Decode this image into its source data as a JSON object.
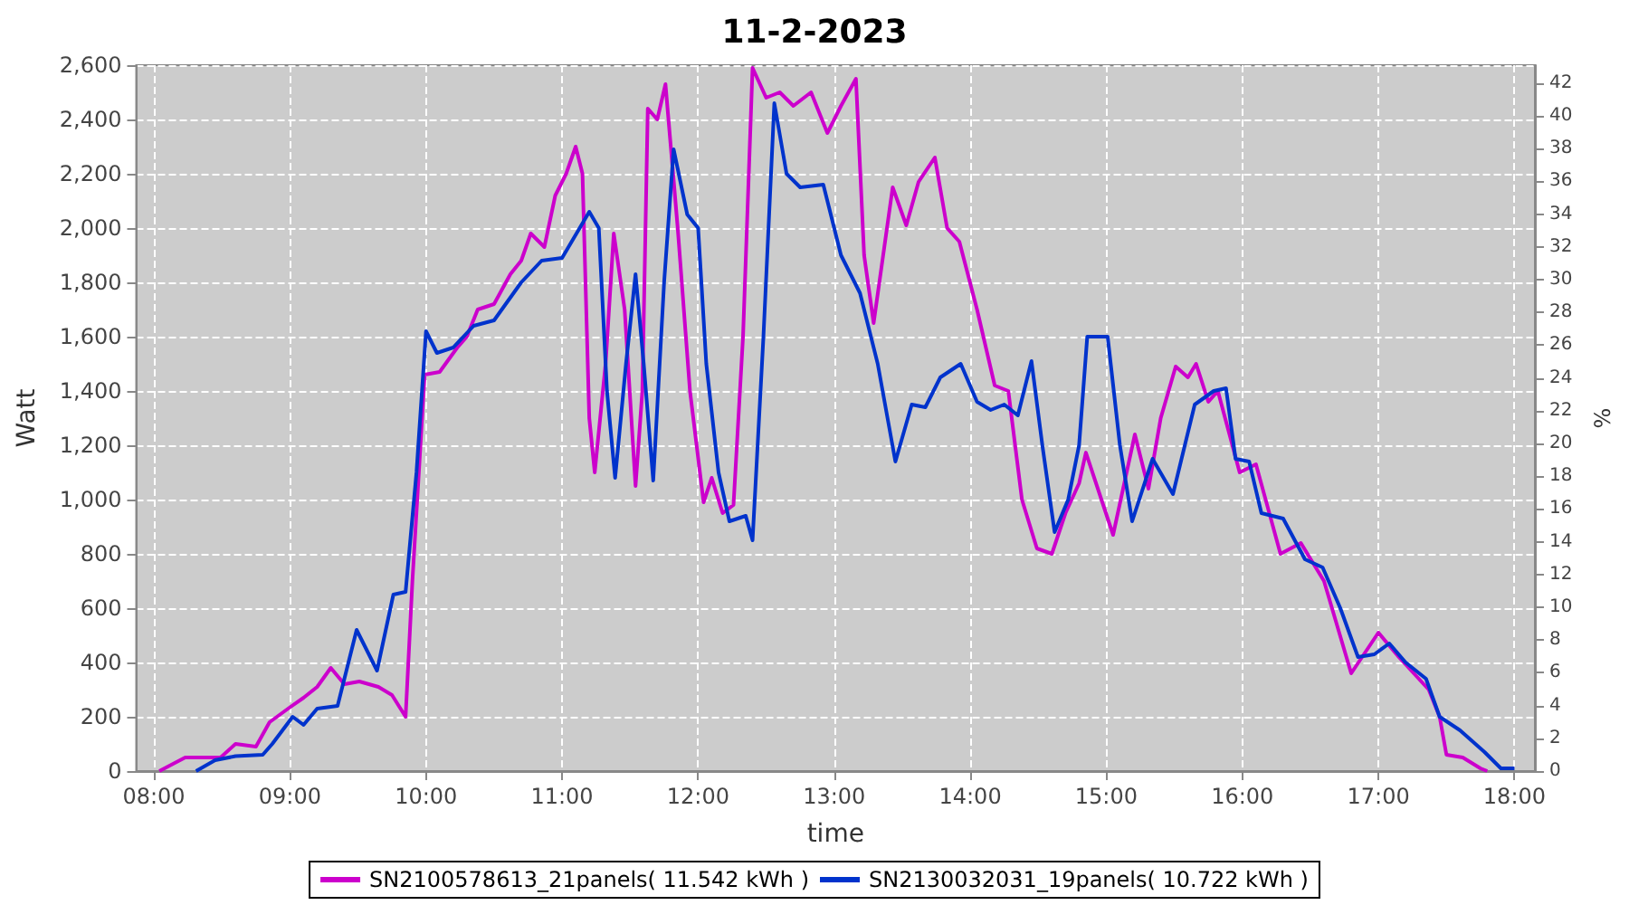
{
  "chart_data": {
    "type": "line",
    "title": "11-2-2023",
    "xlabel": "time",
    "ylabel": "Watt",
    "y2label": "%",
    "xlim": [
      7.87,
      18.15
    ],
    "xticks": [
      {
        "value": 8,
        "label": "08:00"
      },
      {
        "value": 9,
        "label": "09:00"
      },
      {
        "value": 10,
        "label": "10:00"
      },
      {
        "value": 11,
        "label": "11:00"
      },
      {
        "value": 12,
        "label": "12:00"
      },
      {
        "value": 13,
        "label": "13:00"
      },
      {
        "value": 14,
        "label": "14:00"
      },
      {
        "value": 15,
        "label": "15:00"
      },
      {
        "value": 16,
        "label": "16:00"
      },
      {
        "value": 17,
        "label": "17:00"
      },
      {
        "value": 18,
        "label": "18:00"
      }
    ],
    "ylim": [
      0,
      2600
    ],
    "yticks": [
      {
        "value": 0,
        "label": "0"
      },
      {
        "value": 200,
        "label": "200"
      },
      {
        "value": 400,
        "label": "400"
      },
      {
        "value": 600,
        "label": "600"
      },
      {
        "value": 800,
        "label": "800"
      },
      {
        "value": 1000,
        "label": "1,000"
      },
      {
        "value": 1200,
        "label": "1,200"
      },
      {
        "value": 1400,
        "label": "1,400"
      },
      {
        "value": 1600,
        "label": "1,600"
      },
      {
        "value": 1800,
        "label": "1,800"
      },
      {
        "value": 2000,
        "label": "2,000"
      },
      {
        "value": 2200,
        "label": "2,200"
      },
      {
        "value": 2400,
        "label": "2,400"
      },
      {
        "value": 2600,
        "label": "2,600"
      }
    ],
    "y2lim": [
      0,
      43.1
    ],
    "y2ticks": [
      0,
      2,
      4,
      6,
      8,
      10,
      12,
      14,
      16,
      18,
      20,
      22,
      24,
      26,
      28,
      30,
      32,
      34,
      36,
      38,
      40,
      42
    ],
    "grid": true,
    "legend": "bottom",
    "marker": "none",
    "line_style": "solid",
    "series": [
      {
        "name": "SN2100578613_21panels( 11.542 kWh )",
        "color": "#cc00cc",
        "x": [
          8.04,
          8.23,
          8.49,
          8.6,
          8.75,
          8.85,
          9.0,
          9.1,
          9.2,
          9.3,
          9.4,
          9.51,
          9.65,
          9.75,
          9.85,
          9.9,
          9.99,
          10.1,
          10.23,
          10.3,
          10.38,
          10.5,
          10.62,
          10.7,
          10.77,
          10.87,
          10.95,
          11.03,
          11.1,
          11.15,
          11.2,
          11.24,
          11.32,
          11.38,
          11.46,
          11.54,
          11.59,
          11.63,
          11.7,
          11.76,
          11.85,
          11.94,
          12.04,
          12.1,
          12.18,
          12.26,
          12.33,
          12.4,
          12.5,
          12.6,
          12.7,
          12.83,
          12.95,
          13.05,
          13.16,
          13.22,
          13.29,
          13.43,
          13.53,
          13.62,
          13.74,
          13.83,
          13.92,
          14.05,
          14.18,
          14.28,
          14.38,
          14.49,
          14.6,
          14.7,
          14.8,
          14.85,
          15.05,
          15.21,
          15.31,
          15.4,
          15.51,
          15.6,
          15.66,
          15.75,
          15.82,
          15.9,
          15.98,
          16.1,
          16.28,
          16.43,
          16.6,
          16.8,
          17.0,
          17.15,
          17.37,
          17.45,
          17.5,
          17.62,
          17.75,
          17.8
        ],
        "values": [
          0,
          50,
          50,
          100,
          90,
          180,
          235,
          270,
          310,
          380,
          320,
          330,
          310,
          280,
          200,
          700,
          1460,
          1470,
          1560,
          1600,
          1700,
          1720,
          1830,
          1880,
          1980,
          1930,
          2120,
          2200,
          2300,
          2200,
          1300,
          1100,
          1500,
          1980,
          1700,
          1050,
          1400,
          2440,
          2400,
          2530,
          2000,
          1400,
          990,
          1080,
          950,
          980,
          1600,
          2590,
          2480,
          2500,
          2450,
          2500,
          2350,
          2450,
          2550,
          1900,
          1650,
          2150,
          2010,
          2170,
          2260,
          2000,
          1950,
          1700,
          1420,
          1400,
          1000,
          820,
          800,
          950,
          1060,
          1173,
          870,
          1240,
          1040,
          1300,
          1490,
          1450,
          1500,
          1360,
          1400,
          1250,
          1100,
          1130,
          800,
          840,
          700,
          360,
          510,
          420,
          300,
          200,
          60,
          50,
          10,
          0
        ]
      },
      {
        "name": "SN2130032031_19panels( 10.722 kWh )",
        "color": "#0033cc",
        "x": [
          8.31,
          8.45,
          8.6,
          8.8,
          8.87,
          9.02,
          9.1,
          9.2,
          9.35,
          9.49,
          9.64,
          9.76,
          9.85,
          9.93,
          10.0,
          10.08,
          10.2,
          10.35,
          10.5,
          10.7,
          10.85,
          11.0,
          11.2,
          11.27,
          11.33,
          11.39,
          11.47,
          11.54,
          11.6,
          11.67,
          11.75,
          11.82,
          11.92,
          12.0,
          12.06,
          12.15,
          12.23,
          12.35,
          12.4,
          12.48,
          12.56,
          12.65,
          12.75,
          12.92,
          13.05,
          13.19,
          13.32,
          13.45,
          13.57,
          13.67,
          13.78,
          13.93,
          14.05,
          14.15,
          14.25,
          14.35,
          14.45,
          14.53,
          14.62,
          14.72,
          14.8,
          14.86,
          15.01,
          15.1,
          15.19,
          15.34,
          15.49,
          15.65,
          15.79,
          15.88,
          15.95,
          16.05,
          16.14,
          16.3,
          16.46,
          16.59,
          16.72,
          16.85,
          16.97,
          17.08,
          17.2,
          17.35,
          17.45,
          17.6,
          17.78,
          17.9,
          18.0
        ],
        "values": [
          0,
          40,
          55,
          60,
          100,
          200,
          170,
          230,
          240,
          520,
          370,
          650,
          660,
          1100,
          1620,
          1540,
          1560,
          1640,
          1660,
          1800,
          1880,
          1890,
          2060,
          2000,
          1400,
          1080,
          1500,
          1830,
          1500,
          1070,
          1800,
          2290,
          2050,
          2000,
          1500,
          1100,
          920,
          940,
          850,
          1600,
          2460,
          2200,
          2150,
          2160,
          1900,
          1760,
          1500,
          1140,
          1350,
          1340,
          1450,
          1500,
          1360,
          1330,
          1350,
          1310,
          1510,
          1200,
          880,
          1000,
          1200,
          1600,
          1600,
          1200,
          920,
          1150,
          1020,
          1350,
          1400,
          1410,
          1150,
          1140,
          950,
          930,
          780,
          750,
          600,
          420,
          430,
          470,
          400,
          340,
          200,
          150,
          70,
          10,
          10
        ]
      }
    ]
  }
}
